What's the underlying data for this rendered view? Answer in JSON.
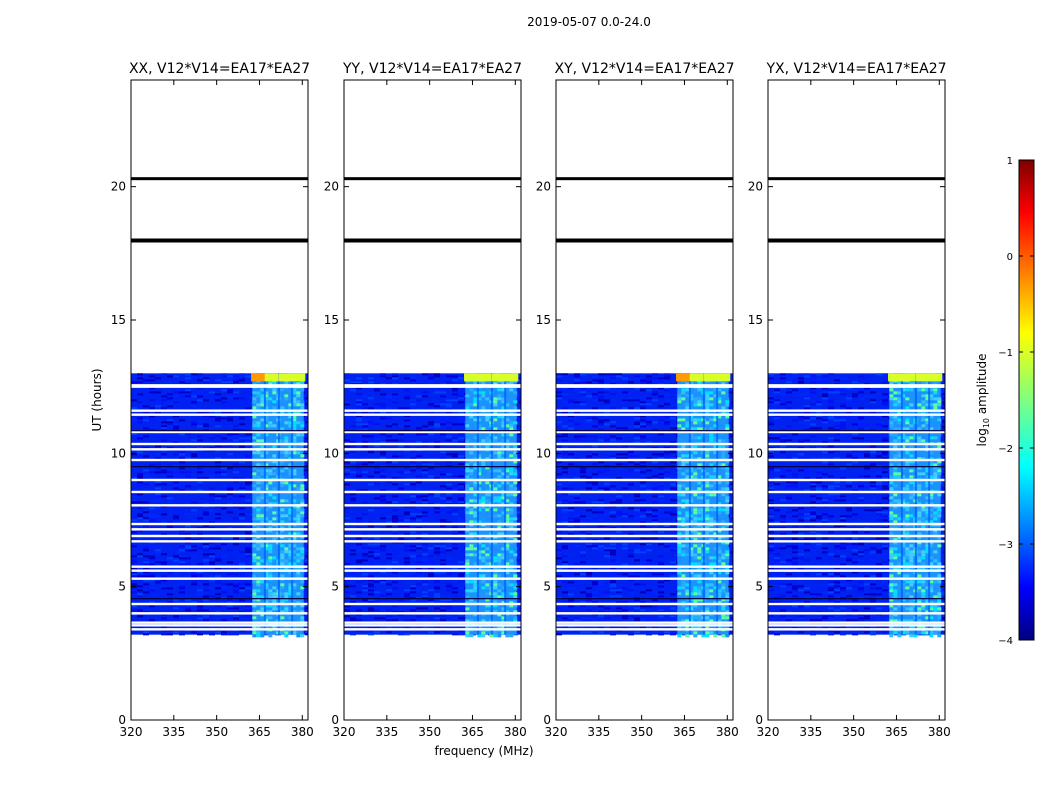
{
  "figure": {
    "suptitle": "2019-05-07 0.0-24.0",
    "xlabel": "frequency (MHz)",
    "ylabel": "UT (hours)",
    "colorbar_label": "log",
    "colorbar_label_sub": "10",
    "colorbar_label_tail": " amplitude"
  },
  "colorbar": {
    "colormap": "jet",
    "vmin": -4,
    "vmax": 1,
    "ticks": [
      1,
      0,
      -1,
      -2,
      -3,
      -4
    ],
    "tick_labels": [
      "1",
      "0",
      "−1",
      "−2",
      "−3",
      "−4"
    ],
    "colors": [
      "#00007f",
      "#0000ff",
      "#007fff",
      "#00ffff",
      "#7fff7f",
      "#ffff00",
      "#ff7f00",
      "#ff0000",
      "#7f0000"
    ]
  },
  "chart_data": {
    "type": "heatmap",
    "xlim": [
      320,
      382
    ],
    "ylim": [
      0,
      24
    ],
    "xticks": [
      320,
      335,
      350,
      365,
      380
    ],
    "yticks": [
      0,
      5,
      10,
      15,
      20
    ],
    "panels": [
      {
        "title": "XX, V12*V14=EA17*EA27",
        "id": "xx"
      },
      {
        "title": "YY, V12*V14=EA17*EA27",
        "id": "yy"
      },
      {
        "title": "XY, V12*V14=EA17*EA27",
        "id": "xy"
      },
      {
        "title": "YX, V12*V14=EA17*EA27",
        "id": "yx"
      }
    ],
    "data_time_range_hours": [
      3.2,
      13.0
    ],
    "active_band_MHz": [
      362.5,
      380.5
    ],
    "band_stripe_centers_MHz": [
      364.5,
      369.3,
      374.3,
      378.6
    ],
    "black_flag_lines_hours": [
      20.3,
      18.0
    ],
    "white_gap_hours": [
      3.4,
      3.55,
      3.65,
      4.0,
      4.35,
      5.3,
      5.6,
      5.75,
      6.7,
      6.9,
      7.15,
      7.35,
      8.05,
      8.55,
      9.0,
      9.75,
      10.15,
      10.35,
      10.8,
      11.45,
      11.6,
      12.5,
      12.55
    ],
    "dark_line_hours": [
      4.55,
      9.5,
      10.85
    ],
    "bright_top_row_hours": [
      12.7,
      13.0
    ]
  }
}
